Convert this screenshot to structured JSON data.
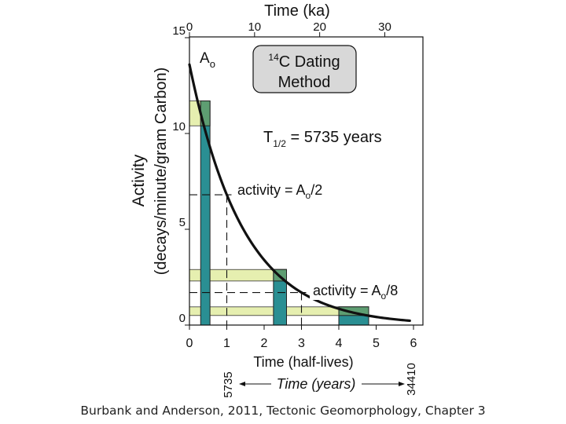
{
  "chart_data": {
    "type": "line",
    "title_box": {
      "line1_super": "14",
      "line1_text": "C Dating",
      "line2": "Method"
    },
    "half_life_label": {
      "prefix": "T",
      "subscript": "1/2",
      "suffix": " = 5735 years"
    },
    "top_axis": {
      "label": "Time (ka)",
      "ticks": [
        "0",
        "10",
        "20",
        "30"
      ],
      "tick_values": [
        0,
        10,
        20,
        30
      ]
    },
    "left_axis": {
      "label_line1": "Activity",
      "label_line2": "(decays/minute/gram Carbon)",
      "ticks": [
        "0",
        "5",
        "10",
        "15"
      ],
      "tick_values": [
        0,
        5,
        10,
        15
      ],
      "range": [
        0,
        15
      ]
    },
    "bottom_axis": {
      "label": "Time (half-lives)",
      "ticks": [
        "0",
        "1",
        "2",
        "3",
        "4",
        "5",
        "6"
      ],
      "tick_values": [
        0,
        1,
        2,
        3,
        4,
        5,
        6
      ],
      "range": [
        0,
        6.2
      ]
    },
    "years_axis": {
      "label": "Time (years)",
      "left_value": "5735",
      "right_value": "34410"
    },
    "curve": {
      "a0": 13.6,
      "half_life": 1,
      "x_start": 0,
      "x_end": 5.9
    },
    "a0_label": {
      "main": "A",
      "sub": "o"
    },
    "annotations": [
      {
        "prefix": "activity = A",
        "sub": "o",
        "suffix": "/2",
        "x": 1,
        "y": 6.8
      },
      {
        "prefix": "activity = A",
        "sub": "o",
        "suffix": "/8",
        "x": 3,
        "y": 1.7
      }
    ],
    "bars": [
      {
        "x0": 0.3,
        "x1": 0.55,
        "y_top": 11.7,
        "band_y0": 10.4,
        "band_y1": 11.7
      },
      {
        "x0": 2.25,
        "x1": 2.6,
        "y_top": 2.9,
        "band_y0": 2.3,
        "band_y1": 2.9
      },
      {
        "x0": 4.0,
        "x1": 4.8,
        "y_top": 0.95,
        "band_y0": 0.5,
        "band_y1": 0.95
      }
    ],
    "colors": {
      "bar": "#2a8f93",
      "bar_overlap": "#5e9e72",
      "band": "#e6efb0",
      "curve": "#111111",
      "title_box": "#d8d8d8"
    }
  },
  "caption": "Burbank and Anderson, 2011, Tectonic Geomorphology, Chapter 3"
}
